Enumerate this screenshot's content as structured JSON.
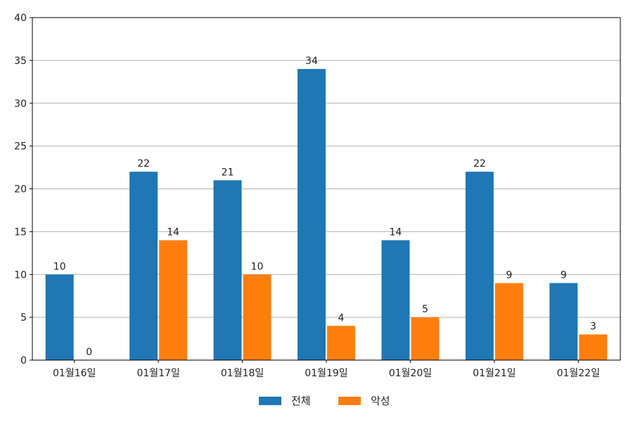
{
  "chart_data": {
    "type": "bar",
    "categories": [
      "01월16일",
      "01월17일",
      "01월18일",
      "01월19일",
      "01월20일",
      "01월21일",
      "01월22일"
    ],
    "series": [
      {
        "name": "전체",
        "values": [
          10,
          22,
          21,
          34,
          14,
          22,
          9
        ],
        "color": "#1f77b4"
      },
      {
        "name": "악성",
        "values": [
          0,
          14,
          10,
          4,
          5,
          9,
          3
        ],
        "color": "#ff7f0e"
      }
    ],
    "ylim": [
      0,
      40
    ],
    "yticks": [
      0,
      5,
      10,
      15,
      20,
      25,
      30,
      35,
      40
    ],
    "grid": true,
    "legend_position": "bottom-center",
    "data_labels": true
  }
}
